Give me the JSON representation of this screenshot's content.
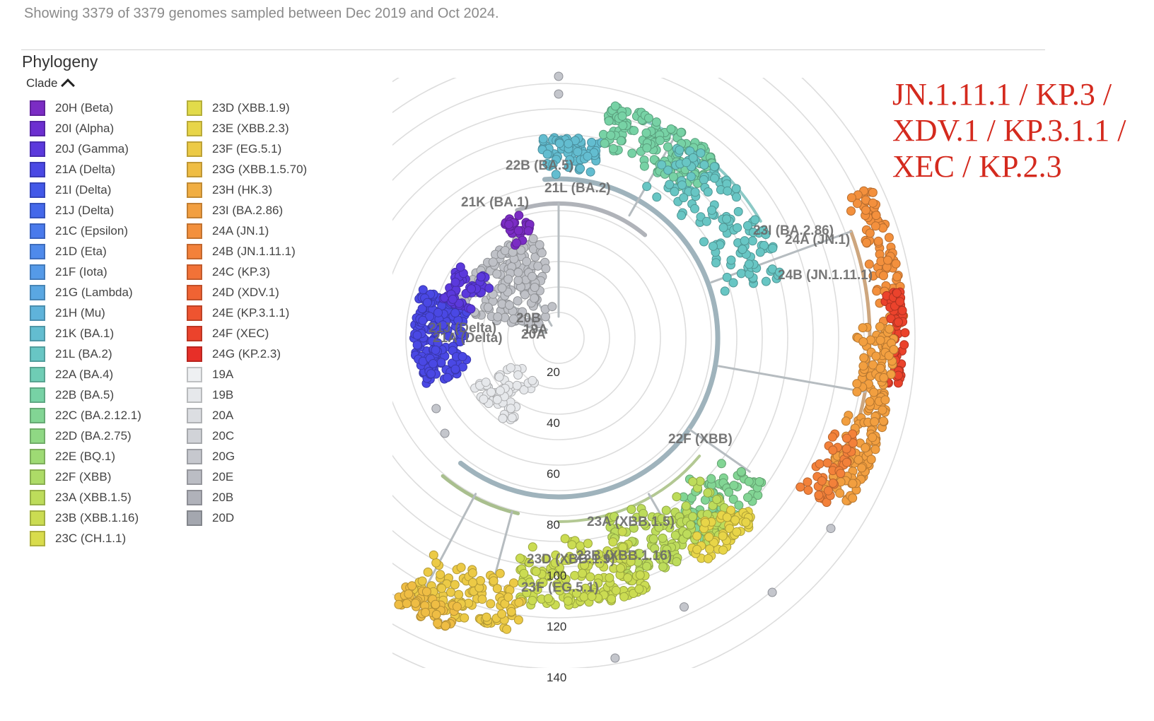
{
  "summary": "Showing 3379 of 3379 genomes sampled between Dec 2019 and Oct 2024.",
  "panel_title": "Phylogeny",
  "clade_toggle_label": "Clade",
  "legend": {
    "col1": [
      {
        "label": "20H (Beta)",
        "color": "#7b2cc4"
      },
      {
        "label": "20I (Alpha)",
        "color": "#6c2fd0"
      },
      {
        "label": "20J (Gamma)",
        "color": "#5b39dc"
      },
      {
        "label": "21A (Delta)",
        "color": "#4a48e4"
      },
      {
        "label": "21I (Delta)",
        "color": "#4258e8"
      },
      {
        "label": "21J (Delta)",
        "color": "#4468ea"
      },
      {
        "label": "21C (Epsilon)",
        "color": "#4a7aec"
      },
      {
        "label": "21D (Eta)",
        "color": "#4f8aeb"
      },
      {
        "label": "21F (Iota)",
        "color": "#559ae8"
      },
      {
        "label": "21G (Lambda)",
        "color": "#5aa7e2"
      },
      {
        "label": "21H (Mu)",
        "color": "#5fb3da"
      },
      {
        "label": "21K (BA.1)",
        "color": "#63bdd0"
      },
      {
        "label": "21L (BA.2)",
        "color": "#68c6c4"
      },
      {
        "label": "22A (BA.4)",
        "color": "#6fcdb5"
      },
      {
        "label": "22B (BA.5)",
        "color": "#77d2a5"
      },
      {
        "label": "22C (BA.2.12.1)",
        "color": "#82d594"
      },
      {
        "label": "22D (BA.2.75)",
        "color": "#8fd884"
      },
      {
        "label": "22E (BQ.1)",
        "color": "#9eda74"
      },
      {
        "label": "22F (XBB)",
        "color": "#addb67"
      },
      {
        "label": "23A (XBB.1.5)",
        "color": "#bddc5b"
      },
      {
        "label": "23B (XBB.1.16)",
        "color": "#cbdc52"
      },
      {
        "label": "23C (CH.1.1)",
        "color": "#d9dc4c"
      }
    ],
    "col2": [
      {
        "label": "23D (XBB.1.9)",
        "color": "#e2db4a"
      },
      {
        "label": "23E (XBB.2.3)",
        "color": "#e8d548"
      },
      {
        "label": "23F (EG.5.1)",
        "color": "#ecca46"
      },
      {
        "label": "23G (XBB.1.5.70)",
        "color": "#efbd44"
      },
      {
        "label": "23H (HK.3)",
        "color": "#f1ae42"
      },
      {
        "label": "23I (BA.2.86)",
        "color": "#f29f40"
      },
      {
        "label": "24A (JN.1)",
        "color": "#f3903d"
      },
      {
        "label": "24B (JN.1.11.1)",
        "color": "#f3813a"
      },
      {
        "label": "24C (KP.3)",
        "color": "#f27237"
      },
      {
        "label": "24D (XDV.1)",
        "color": "#f06333"
      },
      {
        "label": "24E (KP.3.1.1)",
        "color": "#ee5430"
      },
      {
        "label": "24F (XEC)",
        "color": "#eb432c"
      },
      {
        "label": "24G (KP.2.3)",
        "color": "#e72f28"
      },
      {
        "label": "19A",
        "color": "#eef0f2"
      },
      {
        "label": "19B",
        "color": "#e6e8eb"
      },
      {
        "label": "20A",
        "color": "#dcdee2"
      },
      {
        "label": "20C",
        "color": "#d1d3d8"
      },
      {
        "label": "20G",
        "color": "#c6c8ce"
      },
      {
        "label": "20E",
        "color": "#bbbdc4"
      },
      {
        "label": "20B",
        "color": "#b0b2ba"
      },
      {
        "label": "20D",
        "color": "#a4a7af"
      }
    ]
  },
  "ring_ticks": [
    "20",
    "40",
    "60",
    "80",
    "100",
    "120",
    "140"
  ],
  "clade_labels": [
    {
      "text": "22B (BA.5)"
    },
    {
      "text": "21L (BA.2)"
    },
    {
      "text": "21K (BA.1)"
    },
    {
      "text": "23I (BA.2.86)"
    },
    {
      "text": "24A (JN.1)"
    },
    {
      "text": "24B (JN.1.11.1)"
    },
    {
      "text": "20B"
    },
    {
      "text": "19A"
    },
    {
      "text": "20A"
    },
    {
      "text": "21J (Delta)"
    },
    {
      "text": "21A (Delta)"
    },
    {
      "text": "22F (XBB)"
    },
    {
      "text": "23A (XBB.1.5)"
    },
    {
      "text": "23D (XBB.1.9)"
    },
    {
      "text": "23B (XBB.1.16)"
    },
    {
      "text": "23F (EG.5.1)"
    }
  ],
  "annotation_lines": [
    "JN.1.11.1 / KP.3 /",
    "XDV.1 / KP.3.1.1 /",
    "XEC / KP.2.3"
  ]
}
